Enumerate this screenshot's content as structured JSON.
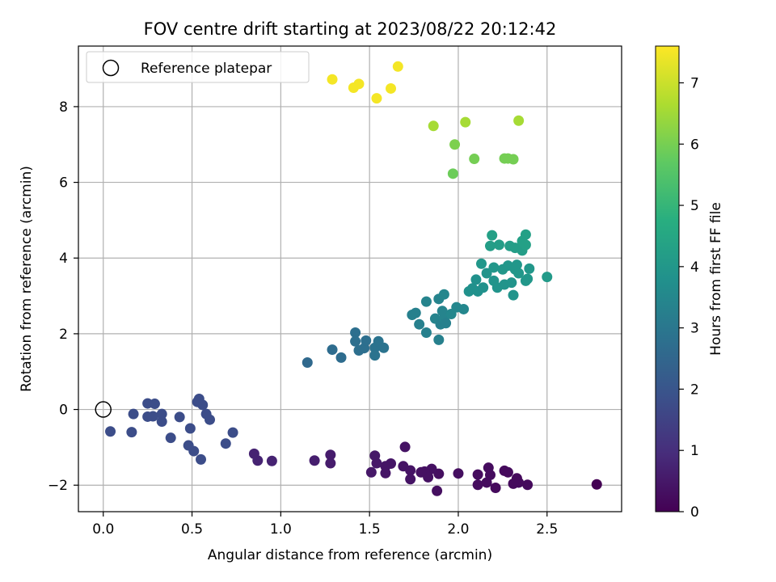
{
  "chart_data": {
    "type": "scatter",
    "title": "FOV centre drift starting at 2023/08/22 20:12:42",
    "xlabel": "Angular distance from reference (arcmin)",
    "ylabel": "Rotation from reference (arcmin)",
    "xlim": [
      -0.14,
      2.92
    ],
    "ylim": [
      -2.7,
      9.6
    ],
    "xticks": [
      0.0,
      0.5,
      1.0,
      1.5,
      2.0,
      2.5
    ],
    "yticks": [
      -2,
      0,
      2,
      4,
      6,
      8
    ],
    "grid": true,
    "legend": {
      "placement": "top-left",
      "entries": [
        "Reference platepar"
      ]
    },
    "reference_point": {
      "x": 0.0,
      "y": 0.0
    },
    "colorbar": {
      "label": "Hours from first FF file",
      "range": [
        0,
        7.6
      ],
      "ticks": [
        0,
        1,
        2,
        3,
        4,
        5,
        6,
        7
      ],
      "colormap": "viridis"
    },
    "points": [
      {
        "x": 2.78,
        "y": -1.98,
        "c": 0.0
      },
      {
        "x": 2.39,
        "y": -1.99,
        "c": 0.2
      },
      {
        "x": 2.34,
        "y": -1.93,
        "c": 0.2
      },
      {
        "x": 2.31,
        "y": -1.96,
        "c": 0.2
      },
      {
        "x": 2.33,
        "y": -1.82,
        "c": 0.2
      },
      {
        "x": 2.26,
        "y": -1.62,
        "c": 0.2
      },
      {
        "x": 2.28,
        "y": -1.66,
        "c": 0.2
      },
      {
        "x": 2.21,
        "y": -2.07,
        "c": 0.2
      },
      {
        "x": 2.18,
        "y": -1.73,
        "c": 0.25
      },
      {
        "x": 2.16,
        "y": -1.93,
        "c": 0.25
      },
      {
        "x": 2.11,
        "y": -1.99,
        "c": 0.25
      },
      {
        "x": 2.11,
        "y": -1.72,
        "c": 0.25
      },
      {
        "x": 2.17,
        "y": -1.54,
        "c": 0.25
      },
      {
        "x": 2.0,
        "y": -1.69,
        "c": 0.3
      },
      {
        "x": 1.88,
        "y": -2.15,
        "c": 0.3
      },
      {
        "x": 1.89,
        "y": -1.7,
        "c": 0.3
      },
      {
        "x": 1.85,
        "y": -1.57,
        "c": 0.35
      },
      {
        "x": 1.81,
        "y": -1.64,
        "c": 0.35
      },
      {
        "x": 1.83,
        "y": -1.79,
        "c": 0.35
      },
      {
        "x": 1.79,
        "y": -1.66,
        "c": 0.35
      },
      {
        "x": 1.7,
        "y": -0.99,
        "c": 0.4
      },
      {
        "x": 1.69,
        "y": -1.5,
        "c": 0.4
      },
      {
        "x": 1.73,
        "y": -1.61,
        "c": 0.4
      },
      {
        "x": 1.73,
        "y": -1.84,
        "c": 0.4
      },
      {
        "x": 1.62,
        "y": -1.43,
        "c": 0.45
      },
      {
        "x": 1.59,
        "y": -1.5,
        "c": 0.45
      },
      {
        "x": 1.59,
        "y": -1.68,
        "c": 0.45
      },
      {
        "x": 1.54,
        "y": -1.42,
        "c": 0.5
      },
      {
        "x": 1.53,
        "y": -1.22,
        "c": 0.5
      },
      {
        "x": 1.51,
        "y": -1.66,
        "c": 0.5
      },
      {
        "x": 1.28,
        "y": -1.2,
        "c": 0.6
      },
      {
        "x": 1.28,
        "y": -1.42,
        "c": 0.6
      },
      {
        "x": 1.19,
        "y": -1.35,
        "c": 0.65
      },
      {
        "x": 0.95,
        "y": -1.36,
        "c": 0.75
      },
      {
        "x": 0.87,
        "y": -1.35,
        "c": 0.75
      },
      {
        "x": 0.85,
        "y": -1.17,
        "c": 0.75
      },
      {
        "x": 0.73,
        "y": -0.61,
        "c": 1.8
      },
      {
        "x": 0.69,
        "y": -0.9,
        "c": 1.8
      },
      {
        "x": 0.6,
        "y": -0.27,
        "c": 1.8
      },
      {
        "x": 0.58,
        "y": -0.12,
        "c": 1.8
      },
      {
        "x": 0.56,
        "y": 0.12,
        "c": 1.8
      },
      {
        "x": 0.54,
        "y": 0.28,
        "c": 1.8
      },
      {
        "x": 0.53,
        "y": 0.2,
        "c": 1.8
      },
      {
        "x": 0.55,
        "y": -1.32,
        "c": 1.8
      },
      {
        "x": 0.51,
        "y": -1.1,
        "c": 1.8
      },
      {
        "x": 0.48,
        "y": -0.95,
        "c": 1.8
      },
      {
        "x": 0.49,
        "y": -0.5,
        "c": 1.8
      },
      {
        "x": 0.43,
        "y": -0.2,
        "c": 1.8
      },
      {
        "x": 0.38,
        "y": -0.75,
        "c": 1.8
      },
      {
        "x": 0.33,
        "y": -0.32,
        "c": 1.8
      },
      {
        "x": 0.33,
        "y": -0.12,
        "c": 1.8
      },
      {
        "x": 0.29,
        "y": 0.15,
        "c": 1.8
      },
      {
        "x": 0.28,
        "y": -0.18,
        "c": 1.8
      },
      {
        "x": 0.25,
        "y": 0.16,
        "c": 1.8
      },
      {
        "x": 0.25,
        "y": -0.19,
        "c": 1.8
      },
      {
        "x": 0.17,
        "y": -0.12,
        "c": 1.8
      },
      {
        "x": 0.16,
        "y": -0.6,
        "c": 1.8
      },
      {
        "x": 0.04,
        "y": -0.58,
        "c": 1.8
      },
      {
        "x": 1.15,
        "y": 1.24,
        "c": 2.6
      },
      {
        "x": 1.29,
        "y": 1.58,
        "c": 2.7
      },
      {
        "x": 1.34,
        "y": 1.37,
        "c": 2.7
      },
      {
        "x": 1.42,
        "y": 2.03,
        "c": 2.8
      },
      {
        "x": 1.42,
        "y": 1.8,
        "c": 2.8
      },
      {
        "x": 1.44,
        "y": 1.56,
        "c": 2.8
      },
      {
        "x": 1.47,
        "y": 1.62,
        "c": 2.8
      },
      {
        "x": 1.48,
        "y": 1.82,
        "c": 2.8
      },
      {
        "x": 1.53,
        "y": 1.63,
        "c": 2.9
      },
      {
        "x": 1.53,
        "y": 1.43,
        "c": 2.9
      },
      {
        "x": 1.55,
        "y": 1.8,
        "c": 2.9
      },
      {
        "x": 1.58,
        "y": 1.63,
        "c": 2.9
      },
      {
        "x": 1.74,
        "y": 2.5,
        "c": 3.3
      },
      {
        "x": 1.76,
        "y": 2.55,
        "c": 3.3
      },
      {
        "x": 1.78,
        "y": 2.25,
        "c": 3.3
      },
      {
        "x": 1.82,
        "y": 2.03,
        "c": 3.3
      },
      {
        "x": 1.82,
        "y": 2.85,
        "c": 3.4
      },
      {
        "x": 1.87,
        "y": 2.4,
        "c": 3.4
      },
      {
        "x": 1.89,
        "y": 2.92,
        "c": 3.4
      },
      {
        "x": 1.89,
        "y": 1.84,
        "c": 3.3
      },
      {
        "x": 1.9,
        "y": 2.25,
        "c": 3.3
      },
      {
        "x": 1.91,
        "y": 2.6,
        "c": 3.4
      },
      {
        "x": 1.92,
        "y": 2.4,
        "c": 3.4
      },
      {
        "x": 1.93,
        "y": 2.28,
        "c": 3.3
      },
      {
        "x": 1.92,
        "y": 3.04,
        "c": 3.5
      },
      {
        "x": 1.96,
        "y": 2.52,
        "c": 3.5
      },
      {
        "x": 1.99,
        "y": 2.7,
        "c": 3.5
      },
      {
        "x": 2.03,
        "y": 2.65,
        "c": 3.5
      },
      {
        "x": 2.06,
        "y": 3.12,
        "c": 3.8
      },
      {
        "x": 2.08,
        "y": 3.2,
        "c": 3.8
      },
      {
        "x": 2.1,
        "y": 3.43,
        "c": 3.8
      },
      {
        "x": 2.11,
        "y": 3.12,
        "c": 3.8
      },
      {
        "x": 2.13,
        "y": 3.85,
        "c": 4.0
      },
      {
        "x": 2.14,
        "y": 3.22,
        "c": 3.8
      },
      {
        "x": 2.16,
        "y": 3.6,
        "c": 3.9
      },
      {
        "x": 2.18,
        "y": 4.32,
        "c": 4.2
      },
      {
        "x": 2.19,
        "y": 4.6,
        "c": 4.3
      },
      {
        "x": 2.2,
        "y": 3.75,
        "c": 4.0
      },
      {
        "x": 2.2,
        "y": 3.4,
        "c": 3.9
      },
      {
        "x": 2.22,
        "y": 3.22,
        "c": 3.9
      },
      {
        "x": 2.23,
        "y": 4.35,
        "c": 4.2
      },
      {
        "x": 2.25,
        "y": 3.7,
        "c": 4.0
      },
      {
        "x": 2.26,
        "y": 3.3,
        "c": 3.9
      },
      {
        "x": 2.28,
        "y": 3.8,
        "c": 4.0
      },
      {
        "x": 2.29,
        "y": 4.32,
        "c": 4.2
      },
      {
        "x": 2.3,
        "y": 3.35,
        "c": 3.9
      },
      {
        "x": 2.31,
        "y": 3.02,
        "c": 3.9
      },
      {
        "x": 2.32,
        "y": 4.27,
        "c": 4.2
      },
      {
        "x": 2.32,
        "y": 3.7,
        "c": 4.0
      },
      {
        "x": 2.33,
        "y": 3.82,
        "c": 4.0
      },
      {
        "x": 2.34,
        "y": 3.6,
        "c": 4.0
      },
      {
        "x": 2.36,
        "y": 4.2,
        "c": 4.2
      },
      {
        "x": 2.36,
        "y": 4.45,
        "c": 4.3
      },
      {
        "x": 2.38,
        "y": 3.4,
        "c": 4.0
      },
      {
        "x": 2.38,
        "y": 4.35,
        "c": 4.3
      },
      {
        "x": 2.38,
        "y": 4.62,
        "c": 4.3
      },
      {
        "x": 2.4,
        "y": 3.72,
        "c": 4.0
      },
      {
        "x": 2.39,
        "y": 3.45,
        "c": 4.0
      },
      {
        "x": 2.5,
        "y": 3.5,
        "c": 4.1
      },
      {
        "x": 1.97,
        "y": 6.23,
        "c": 5.9
      },
      {
        "x": 1.98,
        "y": 7.0,
        "c": 6.1
      },
      {
        "x": 2.09,
        "y": 6.62,
        "c": 6.0
      },
      {
        "x": 2.26,
        "y": 6.63,
        "c": 6.0
      },
      {
        "x": 2.28,
        "y": 6.63,
        "c": 6.0
      },
      {
        "x": 2.31,
        "y": 6.61,
        "c": 6.0
      },
      {
        "x": 1.86,
        "y": 7.49,
        "c": 6.6
      },
      {
        "x": 2.04,
        "y": 7.59,
        "c": 6.6
      },
      {
        "x": 2.34,
        "y": 7.63,
        "c": 6.6
      },
      {
        "x": 1.29,
        "y": 8.72,
        "c": 7.5
      },
      {
        "x": 1.41,
        "y": 8.5,
        "c": 7.5
      },
      {
        "x": 1.44,
        "y": 8.6,
        "c": 7.5
      },
      {
        "x": 1.54,
        "y": 8.22,
        "c": 7.5
      },
      {
        "x": 1.62,
        "y": 8.48,
        "c": 7.5
      },
      {
        "x": 1.66,
        "y": 9.06,
        "c": 7.5
      }
    ]
  }
}
